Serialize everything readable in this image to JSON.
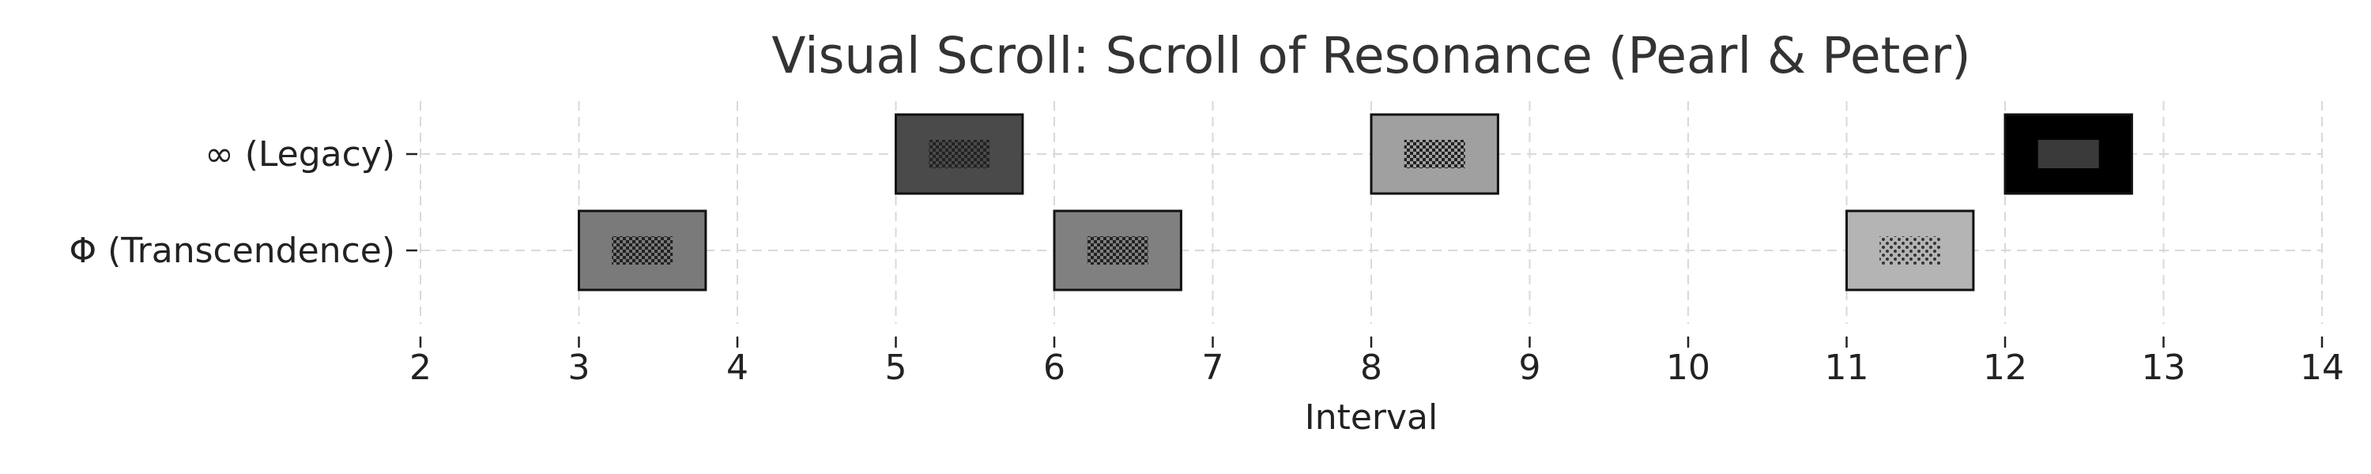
{
  "chart_data": {
    "type": "timeline",
    "title": "Visual Scroll: Scroll of Resonance (Pearl & Peter)",
    "xlabel": "Interval",
    "ylabel": "",
    "xlim": [
      2,
      14
    ],
    "xticks": [
      2,
      3,
      4,
      5,
      6,
      7,
      8,
      9,
      10,
      11,
      12,
      13,
      14
    ],
    "categories": [
      "∞ (Legacy)",
      "Φ (Transcendence)"
    ],
    "grid": true,
    "events": [
      {
        "category": "Φ (Transcendence)",
        "start": 3,
        "end": 3.8,
        "fill": "#7a7a7a",
        "pattern": "checker"
      },
      {
        "category": "∞ (Legacy)",
        "start": 5,
        "end": 5.8,
        "fill": "#4a4a4a",
        "pattern": "checker"
      },
      {
        "category": "Φ (Transcendence)",
        "start": 6,
        "end": 6.8,
        "fill": "#808080",
        "pattern": "checker"
      },
      {
        "category": "∞ (Legacy)",
        "start": 8,
        "end": 8.8,
        "fill": "#a0a0a0",
        "pattern": "checker"
      },
      {
        "category": "Φ (Transcendence)",
        "start": 11,
        "end": 11.8,
        "fill": "#b4b4b4",
        "pattern": "dots"
      },
      {
        "category": "∞ (Legacy)",
        "start": 12,
        "end": 12.8,
        "fill": "#000000",
        "pattern": "solid"
      }
    ]
  }
}
